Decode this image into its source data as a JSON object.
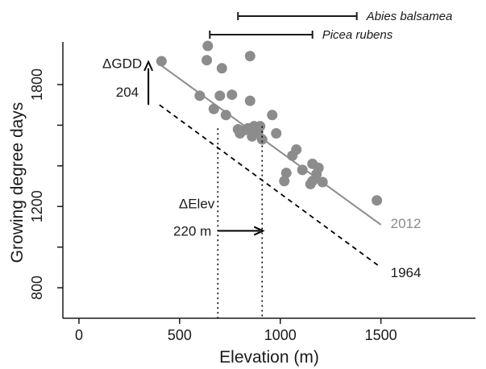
{
  "chart_data": {
    "type": "scatter",
    "xlabel": "Elevation (m)",
    "ylabel": "Growing degree days",
    "xlim": [
      -80,
      1970
    ],
    "ylim": [
      650,
      2010
    ],
    "x_ticks": [
      0,
      500,
      1000,
      1500
    ],
    "y_ticks": [
      800,
      1200,
      1800
    ],
    "x_tick_labels": [
      "0",
      "500",
      "1000",
      "1500"
    ],
    "y_tick_labels": [
      "800",
      "1200",
      "1800"
    ],
    "grid": false,
    "legend": "none",
    "colors": {
      "points": "#8c8c8c",
      "line_2012": "#8c8c8c",
      "line_1964": "#000000"
    },
    "series": [
      {
        "name": "2012",
        "kind": "points",
        "points": [
          [
            410,
            1915
          ],
          [
            640,
            1990
          ],
          [
            635,
            1920
          ],
          [
            850,
            1940
          ],
          [
            710,
            1880
          ],
          [
            600,
            1745
          ],
          [
            700,
            1745
          ],
          [
            760,
            1750
          ],
          [
            850,
            1720
          ],
          [
            670,
            1680
          ],
          [
            730,
            1650
          ],
          [
            960,
            1650
          ],
          [
            790,
            1580
          ],
          [
            800,
            1560
          ],
          [
            820,
            1575
          ],
          [
            840,
            1585
          ],
          [
            870,
            1595
          ],
          [
            860,
            1545
          ],
          [
            890,
            1565
          ],
          [
            900,
            1595
          ],
          [
            910,
            1530
          ],
          [
            980,
            1560
          ],
          [
            1060,
            1450
          ],
          [
            1080,
            1480
          ],
          [
            1030,
            1365
          ],
          [
            1020,
            1325
          ],
          [
            1110,
            1380
          ],
          [
            1160,
            1410
          ],
          [
            1190,
            1390
          ],
          [
            1180,
            1360
          ],
          [
            1160,
            1325
          ],
          [
            1150,
            1310
          ],
          [
            1210,
            1320
          ],
          [
            1480,
            1230
          ]
        ]
      },
      {
        "name": "2012",
        "kind": "line",
        "x": [
          400,
          1500
        ],
        "y": [
          1900,
          1110
        ]
      },
      {
        "name": "1964",
        "kind": "line",
        "x": [
          400,
          1500
        ],
        "y": [
          1700,
          900
        ]
      }
    ],
    "species_ranges": [
      {
        "name": "Abies balsamea",
        "x_range": [
          790,
          1380
        ]
      },
      {
        "name": "Picea rubens",
        "x_range": [
          650,
          1160
        ]
      }
    ],
    "annotations": {
      "line_2012_label": "2012",
      "line_1964_label": "1964",
      "delta_gdd_label": "ΔGDD",
      "delta_gdd_value": "204",
      "delta_gdd_x": 345,
      "delta_gdd_from": 1700,
      "delta_gdd_to": 1904,
      "delta_elev_label": "ΔElev",
      "delta_elev_value": "220 m",
      "delta_elev_from_x": 690,
      "delta_elev_to_x": 910,
      "delta_elev_arrow_y": 1080,
      "delta_elev_from_x_start": 690
    }
  }
}
